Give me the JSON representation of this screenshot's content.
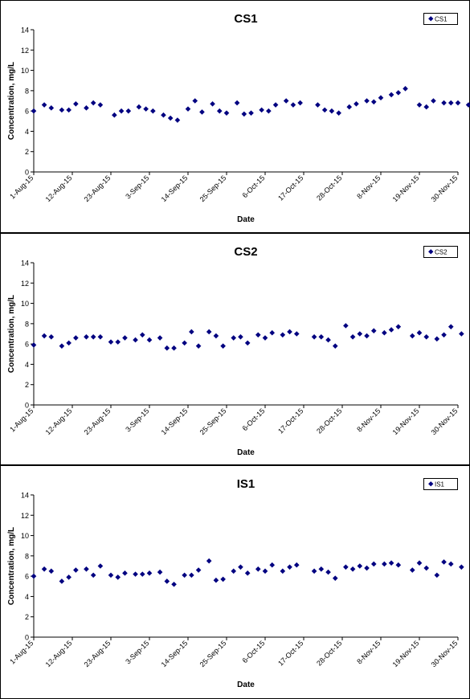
{
  "chart_data": [
    {
      "type": "scatter",
      "title": "CS1",
      "xlabel": "Date",
      "ylabel": "Concentration, mg/L",
      "ylim": [
        0,
        14
      ],
      "yticks": [
        0,
        2,
        4,
        6,
        8,
        10,
        12,
        14
      ],
      "xlim": [
        "2015-08-01",
        "2015-11-30"
      ],
      "xticks": [
        "1-Aug-15",
        "12-Aug-15",
        "23-Aug-15",
        "3-Sep-15",
        "14-Sep-15",
        "25-Sep-15",
        "6-Oct-15",
        "17-Oct-15",
        "28-Oct-15",
        "8-Nov-15",
        "19-Nov-15",
        "30-Nov-15"
      ],
      "legend": "top-right",
      "grid": false,
      "marker_color": "#000080",
      "series": [
        {
          "name": "CS1",
          "points": [
            [
              "2015-08-01",
              6.0
            ],
            [
              "2015-08-04",
              6.6
            ],
            [
              "2015-08-06",
              6.3
            ],
            [
              "2015-08-09",
              6.1
            ],
            [
              "2015-08-11",
              6.1
            ],
            [
              "2015-08-13",
              6.7
            ],
            [
              "2015-08-16",
              6.3
            ],
            [
              "2015-08-18",
              6.8
            ],
            [
              "2015-08-20",
              6.6
            ],
            [
              "2015-08-24",
              5.6
            ],
            [
              "2015-08-26",
              6.0
            ],
            [
              "2015-08-28",
              6.0
            ],
            [
              "2015-08-31",
              6.4
            ],
            [
              "2015-09-02",
              6.2
            ],
            [
              "2015-09-04",
              6.0
            ],
            [
              "2015-09-07",
              5.6
            ],
            [
              "2015-09-09",
              5.3
            ],
            [
              "2015-09-11",
              5.1
            ],
            [
              "2015-09-14",
              6.2
            ],
            [
              "2015-09-16",
              7.0
            ],
            [
              "2015-09-18",
              5.9
            ],
            [
              "2015-09-21",
              6.7
            ],
            [
              "2015-09-23",
              6.0
            ],
            [
              "2015-09-25",
              5.8
            ],
            [
              "2015-09-28",
              6.8
            ],
            [
              "2015-09-30",
              5.7
            ],
            [
              "2015-10-02",
              5.8
            ],
            [
              "2015-10-05",
              6.1
            ],
            [
              "2015-10-07",
              6.0
            ],
            [
              "2015-10-09",
              6.6
            ],
            [
              "2015-10-12",
              7.0
            ],
            [
              "2015-10-14",
              6.6
            ],
            [
              "2015-10-16",
              6.8
            ],
            [
              "2015-10-21",
              6.6
            ],
            [
              "2015-10-23",
              6.1
            ],
            [
              "2015-10-25",
              6.0
            ],
            [
              "2015-10-27",
              5.8
            ],
            [
              "2015-10-30",
              6.4
            ],
            [
              "2015-11-01",
              6.7
            ],
            [
              "2015-11-04",
              7.0
            ],
            [
              "2015-11-06",
              6.9
            ],
            [
              "2015-11-08",
              7.3
            ],
            [
              "2015-11-11",
              7.6
            ],
            [
              "2015-11-13",
              7.8
            ],
            [
              "2015-11-15",
              8.2
            ],
            [
              "2015-11-19",
              6.6
            ],
            [
              "2015-11-21",
              6.4
            ],
            [
              "2015-11-23",
              7.0
            ],
            [
              "2015-11-26",
              6.8
            ],
            [
              "2015-11-28",
              6.8
            ],
            [
              "2015-11-30",
              6.8
            ],
            [
              "2015-12-03",
              6.6
            ]
          ]
        }
      ]
    },
    {
      "type": "scatter",
      "title": "CS2",
      "xlabel": "Date",
      "ylabel": "Concentration, mg/L",
      "ylim": [
        0,
        14
      ],
      "yticks": [
        0,
        2,
        4,
        6,
        8,
        10,
        12,
        14
      ],
      "xlim": [
        "2015-08-01",
        "2015-11-30"
      ],
      "xticks": [
        "1-Aug-15",
        "12-Aug-15",
        "23-Aug-15",
        "3-Sep-15",
        "14-Sep-15",
        "25-Sep-15",
        "6-Oct-15",
        "17-Oct-15",
        "28-Oct-15",
        "8-Nov-15",
        "19-Nov-15",
        "30-Nov-15"
      ],
      "legend": "top-right",
      "grid": false,
      "marker_color": "#000080",
      "series": [
        {
          "name": "CS2",
          "points": [
            [
              "2015-08-01",
              5.9
            ],
            [
              "2015-08-04",
              6.8
            ],
            [
              "2015-08-06",
              6.7
            ],
            [
              "2015-08-09",
              5.8
            ],
            [
              "2015-08-11",
              6.1
            ],
            [
              "2015-08-13",
              6.6
            ],
            [
              "2015-08-16",
              6.7
            ],
            [
              "2015-08-18",
              6.7
            ],
            [
              "2015-08-20",
              6.7
            ],
            [
              "2015-08-23",
              6.2
            ],
            [
              "2015-08-25",
              6.2
            ],
            [
              "2015-08-27",
              6.6
            ],
            [
              "2015-08-30",
              6.4
            ],
            [
              "2015-09-01",
              6.9
            ],
            [
              "2015-09-03",
              6.4
            ],
            [
              "2015-09-06",
              6.6
            ],
            [
              "2015-09-08",
              5.6
            ],
            [
              "2015-09-10",
              5.6
            ],
            [
              "2015-09-13",
              6.1
            ],
            [
              "2015-09-15",
              7.2
            ],
            [
              "2015-09-17",
              5.8
            ],
            [
              "2015-09-20",
              7.2
            ],
            [
              "2015-09-22",
              6.8
            ],
            [
              "2015-09-24",
              5.8
            ],
            [
              "2015-09-27",
              6.6
            ],
            [
              "2015-09-29",
              6.7
            ],
            [
              "2015-10-01",
              6.1
            ],
            [
              "2015-10-04",
              6.9
            ],
            [
              "2015-10-06",
              6.6
            ],
            [
              "2015-10-08",
              7.1
            ],
            [
              "2015-10-11",
              6.9
            ],
            [
              "2015-10-13",
              7.2
            ],
            [
              "2015-10-15",
              7.0
            ],
            [
              "2015-10-20",
              6.7
            ],
            [
              "2015-10-22",
              6.7
            ],
            [
              "2015-10-24",
              6.4
            ],
            [
              "2015-10-26",
              5.8
            ],
            [
              "2015-10-29",
              7.8
            ],
            [
              "2015-10-31",
              6.7
            ],
            [
              "2015-11-02",
              7.0
            ],
            [
              "2015-11-04",
              6.8
            ],
            [
              "2015-11-06",
              7.3
            ],
            [
              "2015-11-09",
              7.1
            ],
            [
              "2015-11-11",
              7.4
            ],
            [
              "2015-11-13",
              7.7
            ],
            [
              "2015-11-17",
              6.8
            ],
            [
              "2015-11-19",
              7.1
            ],
            [
              "2015-11-21",
              6.7
            ],
            [
              "2015-11-24",
              6.5
            ],
            [
              "2015-11-26",
              6.9
            ],
            [
              "2015-11-28",
              7.7
            ],
            [
              "2015-12-01",
              7.0
            ]
          ]
        }
      ]
    },
    {
      "type": "scatter",
      "title": "IS1",
      "xlabel": "Date",
      "ylabel": "Concentration, mg/L",
      "ylim": [
        0,
        14
      ],
      "yticks": [
        0,
        2,
        4,
        6,
        8,
        10,
        12,
        14
      ],
      "xlim": [
        "2015-08-01",
        "2015-11-30"
      ],
      "xticks": [
        "1-Aug-15",
        "12-Aug-15",
        "23-Aug-15",
        "3-Sep-15",
        "14-Sep-15",
        "25-Sep-15",
        "6-Oct-15",
        "17-Oct-15",
        "28-Oct-15",
        "8-Nov-15",
        "19-Nov-15",
        "30-Nov-15"
      ],
      "legend": "top-right",
      "grid": false,
      "marker_color": "#000080",
      "series": [
        {
          "name": "IS1",
          "points": [
            [
              "2015-08-01",
              6.0
            ],
            [
              "2015-08-04",
              6.7
            ],
            [
              "2015-08-06",
              6.5
            ],
            [
              "2015-08-09",
              5.5
            ],
            [
              "2015-08-11",
              5.9
            ],
            [
              "2015-08-13",
              6.6
            ],
            [
              "2015-08-16",
              6.7
            ],
            [
              "2015-08-18",
              6.1
            ],
            [
              "2015-08-20",
              7.0
            ],
            [
              "2015-08-23",
              6.1
            ],
            [
              "2015-08-25",
              5.9
            ],
            [
              "2015-08-27",
              6.3
            ],
            [
              "2015-08-30",
              6.2
            ],
            [
              "2015-09-01",
              6.2
            ],
            [
              "2015-09-03",
              6.3
            ],
            [
              "2015-09-06",
              6.4
            ],
            [
              "2015-09-08",
              5.5
            ],
            [
              "2015-09-10",
              5.2
            ],
            [
              "2015-09-13",
              6.1
            ],
            [
              "2015-09-15",
              6.1
            ],
            [
              "2015-09-17",
              6.6
            ],
            [
              "2015-09-20",
              7.5
            ],
            [
              "2015-09-22",
              5.6
            ],
            [
              "2015-09-24",
              5.7
            ],
            [
              "2015-09-27",
              6.5
            ],
            [
              "2015-09-29",
              6.9
            ],
            [
              "2015-10-01",
              6.3
            ],
            [
              "2015-10-04",
              6.7
            ],
            [
              "2015-10-06",
              6.5
            ],
            [
              "2015-10-08",
              7.1
            ],
            [
              "2015-10-11",
              6.5
            ],
            [
              "2015-10-13",
              6.9
            ],
            [
              "2015-10-15",
              7.1
            ],
            [
              "2015-10-20",
              6.5
            ],
            [
              "2015-10-22",
              6.7
            ],
            [
              "2015-10-24",
              6.4
            ],
            [
              "2015-10-26",
              5.8
            ],
            [
              "2015-10-29",
              6.9
            ],
            [
              "2015-10-31",
              6.7
            ],
            [
              "2015-11-02",
              7.0
            ],
            [
              "2015-11-04",
              6.8
            ],
            [
              "2015-11-06",
              7.2
            ],
            [
              "2015-11-09",
              7.2
            ],
            [
              "2015-11-11",
              7.3
            ],
            [
              "2015-11-13",
              7.1
            ],
            [
              "2015-11-17",
              6.6
            ],
            [
              "2015-11-19",
              7.3
            ],
            [
              "2015-11-21",
              6.8
            ],
            [
              "2015-11-24",
              6.1
            ],
            [
              "2015-11-26",
              7.4
            ],
            [
              "2015-11-28",
              7.2
            ],
            [
              "2015-12-01",
              6.9
            ]
          ]
        }
      ]
    }
  ]
}
